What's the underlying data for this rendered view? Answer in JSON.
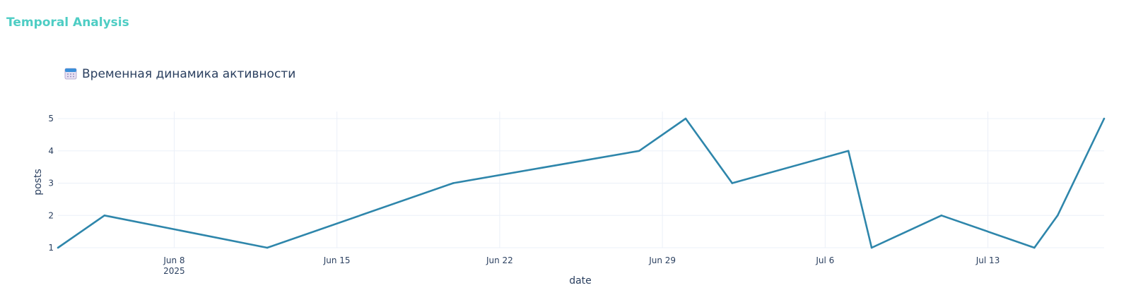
{
  "page": {
    "heading": "Temporal Analysis"
  },
  "chart_data": {
    "type": "line",
    "title": "Временная динамика активности",
    "title_icon": "calendar-icon",
    "xlabel": "date",
    "ylabel": "posts",
    "x_tick_labels": [
      "Jun 8",
      "Jun 15",
      "Jun 22",
      "Jun 29",
      "Jul 6",
      "Jul 13"
    ],
    "x_tick_dates": [
      "2025-06-08",
      "2025-06-15",
      "2025-06-22",
      "2025-06-29",
      "2025-07-06",
      "2025-07-13"
    ],
    "x_year_label": "2025",
    "xlim": [
      "2025-06-03",
      "2025-07-18"
    ],
    "ylim": [
      1,
      5
    ],
    "y_ticks": [
      1,
      2,
      3,
      4,
      5
    ],
    "grid": true,
    "line_color": "#2e86ab",
    "series": [
      {
        "x": [
          "2025-06-03",
          "2025-06-05",
          "2025-06-12",
          "2025-06-20",
          "2025-06-28",
          "2025-06-30",
          "2025-07-02",
          "2025-07-07",
          "2025-07-08",
          "2025-07-11",
          "2025-07-15",
          "2025-07-16",
          "2025-07-18"
        ],
        "values": [
          1,
          2,
          1,
          3,
          4,
          5,
          3,
          4,
          1,
          2,
          1,
          2,
          5
        ]
      }
    ]
  }
}
